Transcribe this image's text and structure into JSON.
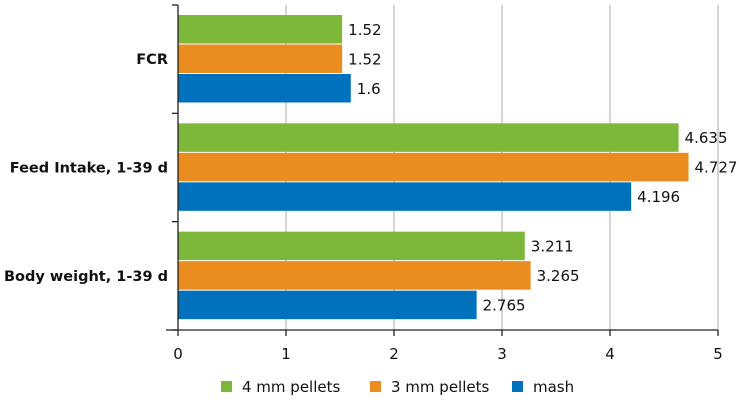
{
  "chart_data": {
    "type": "bar",
    "orientation": "horizontal",
    "categories": [
      "FCR",
      "Feed Intake, 1-39 d",
      "Body weight, 1-39 d"
    ],
    "series": [
      {
        "name": "4 mm pellets",
        "color": "#7db83a",
        "values": [
          1.52,
          4.635,
          3.211
        ],
        "labels": [
          "1.52",
          "4.635",
          "3.211"
        ]
      },
      {
        "name": "3 mm pellets",
        "color": "#eb8c1f",
        "values": [
          1.52,
          4.727,
          3.265
        ],
        "labels": [
          "1.52",
          "4.727",
          "3.265"
        ]
      },
      {
        "name": "mash",
        "color": "#0071bc",
        "values": [
          1.6,
          4.196,
          2.765
        ],
        "labels": [
          "1.6",
          "4.196",
          "2.765"
        ]
      }
    ],
    "xlim": [
      0,
      5
    ],
    "xticks": [
      "0",
      "1",
      "2",
      "3",
      "4",
      "5"
    ],
    "grid": true,
    "legend": "bottom",
    "title": "",
    "xlabel": "",
    "ylabel": ""
  }
}
